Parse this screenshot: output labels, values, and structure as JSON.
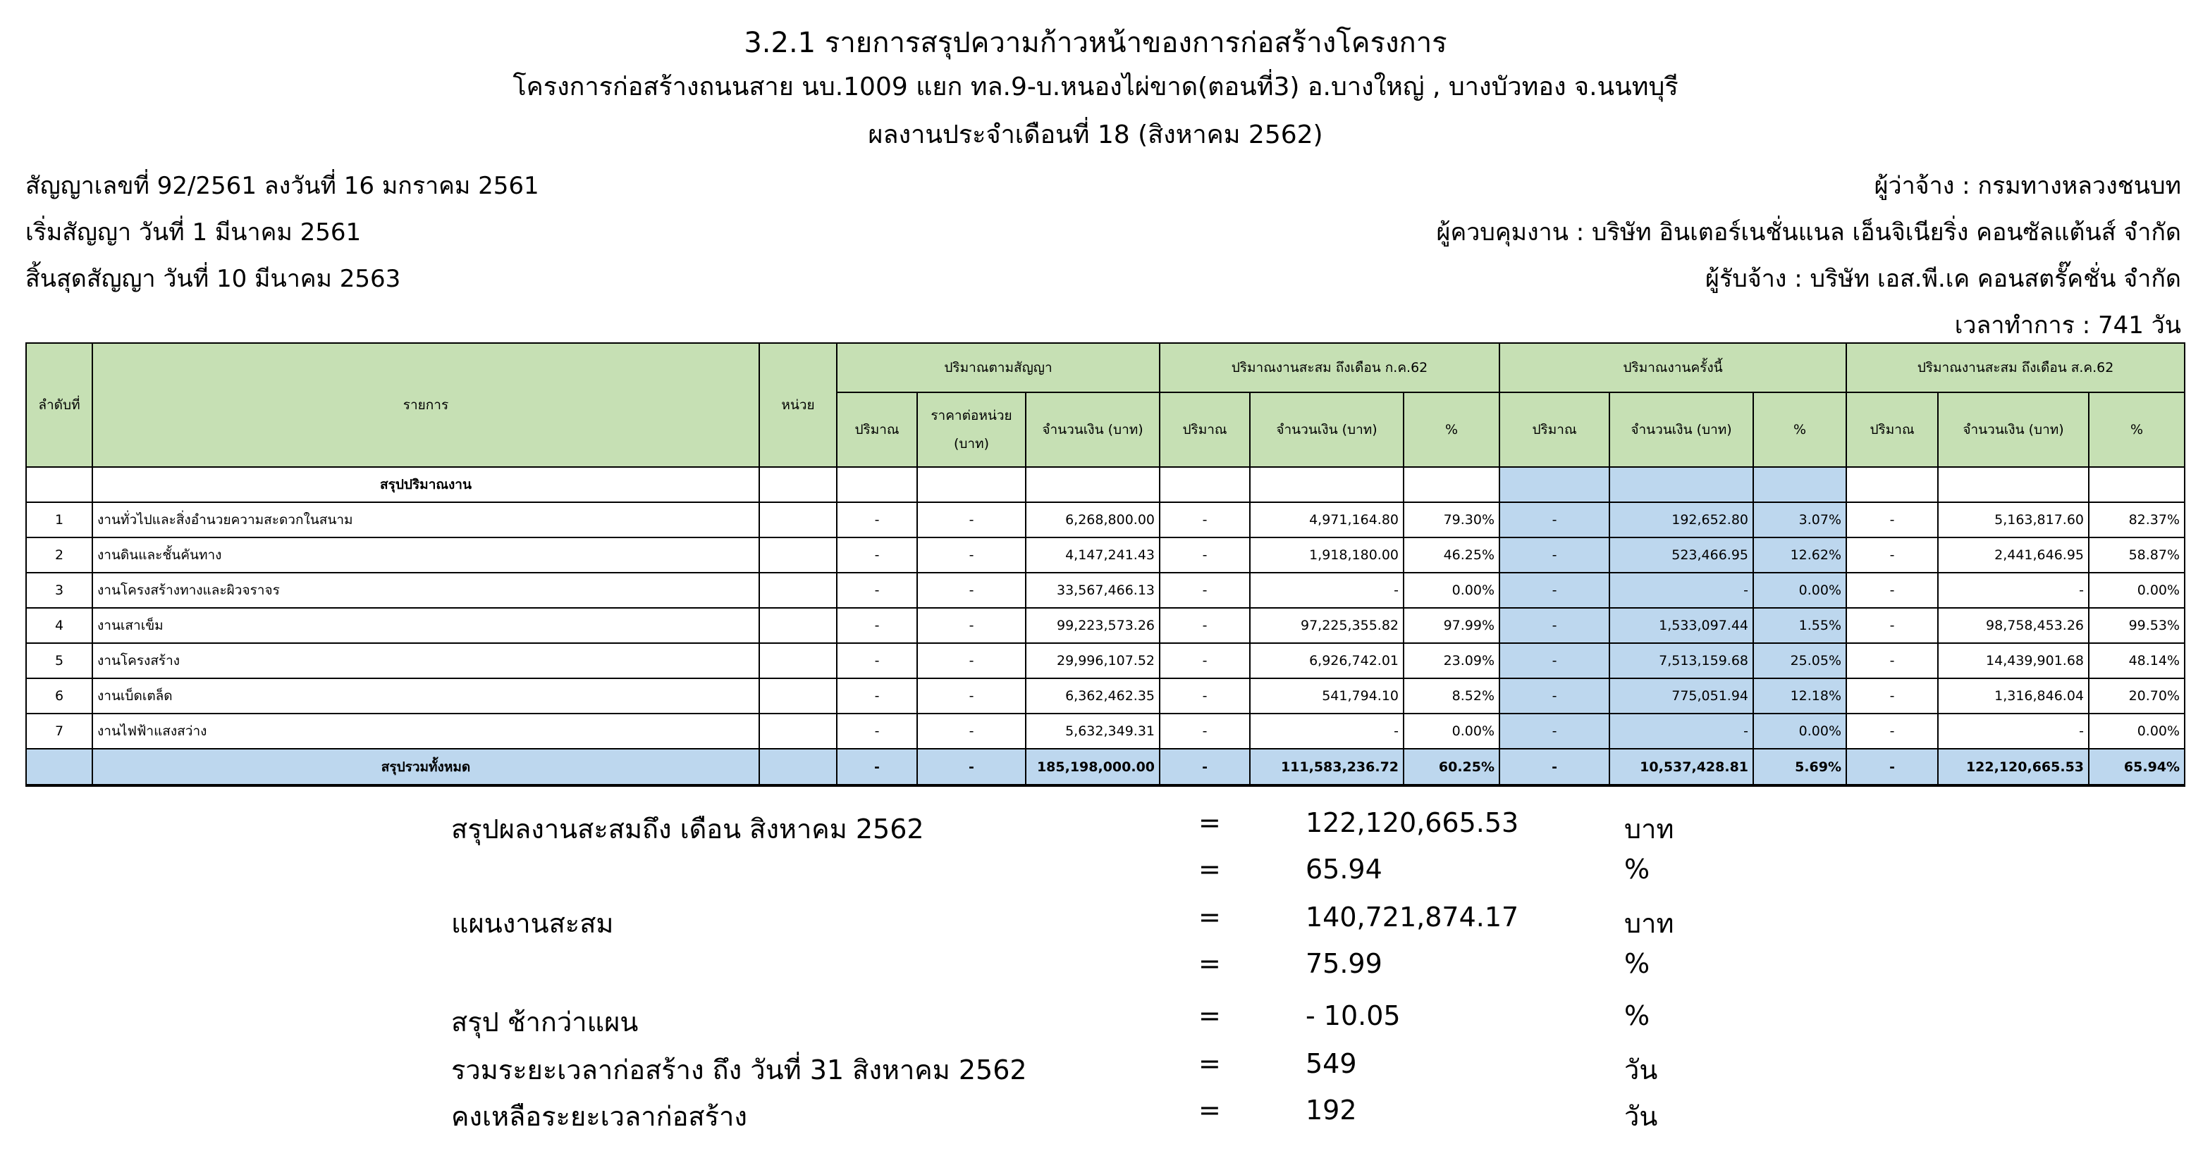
{
  "header": {
    "title": "3.2.1 รายการสรุปความก้าวหน้าของการก่อสร้างโครงการ",
    "project": "โครงการก่อสร้างถนนสาย นบ.1009 แยก ทล.9-บ.หนองไผ่ขาด(ตอนที่3)  อ.บางใหญ่ , บางบัวทอง จ.นนทบุรี",
    "period": "ผลงานประจำเดือนที่ 18 (สิงหาคม 2562)",
    "contract_no": "สัญญาเลขที่ 92/2561 ลงวันที่ 16 มกราคม 2561",
    "start": "เริ่มสัญญา  วันที่ 1 มีนาคม 2561",
    "end": "สิ้นสุดสัญญา  วันที่ 10 มีนาคม 2563",
    "employer": "ผู้ว่าจ้าง : กรมทางหลวงชนบท",
    "supervisor": "ผู้ควบคุมงาน : บริษัท อินเตอร์เนชั่นแนล เอ็นจิเนียริ่ง คอนซัลแต้นส์ จำกัด",
    "contractor": "ผู้รับจ้าง : บริษัท เอส.พี.เค คอนสตรั๊คชั่น จำกัด",
    "duration": "เวลาทำการ : 741 วัน"
  },
  "table": {
    "col_no": "ลำดับที่",
    "col_item": "รายการ",
    "col_unit": "หน่วย",
    "groups": [
      "ปริมาณตามสัญญา",
      "ปริมาณงานสะสม ถึงเดือน ก.ค.62",
      "ปริมาณงานครั้งนี้",
      "ปริมาณงานสะสม ถึงเดือน ส.ค.62"
    ],
    "qty": "ปริมาณ",
    "unit_price_1": "ราคาต่อหน่วย",
    "unit_price_2": "(บาท)",
    "amount": "จำนวนเงิน (บาท)",
    "pct": "%",
    "section": "สรุปปริมาณงาน",
    "rows": [
      {
        "no": "1",
        "item": "งานทั่วไปและสิ่งอำนวยความสะดวกในสนาม",
        "c": [
          "-",
          "-",
          "6,268,800.00",
          "-",
          "4,971,164.80",
          "79.30%",
          "-",
          "192,652.80",
          "3.07%",
          "-",
          "5,163,817.60",
          "82.37%"
        ]
      },
      {
        "no": "2",
        "item": "งานดินและชั้นคันทาง",
        "c": [
          "-",
          "-",
          "4,147,241.43",
          "-",
          "1,918,180.00",
          "46.25%",
          "-",
          "523,466.95",
          "12.62%",
          "-",
          "2,441,646.95",
          "58.87%"
        ]
      },
      {
        "no": "3",
        "item": "งานโครงสร้างทางและผิวจราจร",
        "c": [
          "-",
          "-",
          "33,567,466.13",
          "-",
          "-",
          "0.00%",
          "-",
          "-",
          "0.00%",
          "-",
          "-",
          "0.00%"
        ]
      },
      {
        "no": "4",
        "item": "งานเสาเข็ม",
        "c": [
          "-",
          "-",
          "99,223,573.26",
          "-",
          "97,225,355.82",
          "97.99%",
          "-",
          "1,533,097.44",
          "1.55%",
          "-",
          "98,758,453.26",
          "99.53%"
        ]
      },
      {
        "no": "5",
        "item": "งานโครงสร้าง",
        "c": [
          "-",
          "-",
          "29,996,107.52",
          "-",
          "6,926,742.01",
          "23.09%",
          "-",
          "7,513,159.68",
          "25.05%",
          "-",
          "14,439,901.68",
          "48.14%"
        ]
      },
      {
        "no": "6",
        "item": "งานเบ็ดเตล็ด",
        "c": [
          "-",
          "-",
          "6,362,462.35",
          "-",
          "541,794.10",
          "8.52%",
          "-",
          "775,051.94",
          "12.18%",
          "-",
          "1,316,846.04",
          "20.70%"
        ]
      },
      {
        "no": "7",
        "item": "งานไฟฟ้าแสงสว่าง",
        "c": [
          "-",
          "-",
          "5,632,349.31",
          "-",
          "-",
          "0.00%",
          "-",
          "-",
          "0.00%",
          "-",
          "-",
          "0.00%"
        ]
      }
    ],
    "total": {
      "item": "สรุปรวมทั้งหมด",
      "c": [
        "-",
        "-",
        "185,198,000.00",
        "-",
        "111,583,236.72",
        "60.25%",
        "-",
        "10,537,428.81",
        "5.69%",
        "-",
        "122,120,665.53",
        "65.94%"
      ]
    }
  },
  "summary": [
    {
      "label": "สรุปผลงานสะสมถึง เดือน สิงหาคม  2562",
      "eq": "=",
      "value": "122,120,665.53",
      "unit": "บาท"
    },
    {
      "label": "",
      "eq": "=",
      "value": "65.94",
      "unit": "%"
    },
    {
      "label": "แผนงานสะสม",
      "eq": "=",
      "value": "140,721,874.17",
      "unit": "บาท"
    },
    {
      "label": "",
      "eq": "=",
      "value": "75.99",
      "unit": "%"
    },
    {
      "label": "สรุป ช้ากว่าแผน",
      "eq": "=",
      "value": "- 10.05",
      "unit": "%"
    },
    {
      "label": "รวมระยะเวลาก่อสร้าง ถึง วันที่ 31 สิงหาคม 2562",
      "eq": "=",
      "value": "549",
      "unit": "วัน"
    },
    {
      "label": "คงเหลือระยะเวลาก่อสร้าง",
      "eq": "=",
      "value": "192",
      "unit": "วัน"
    }
  ]
}
